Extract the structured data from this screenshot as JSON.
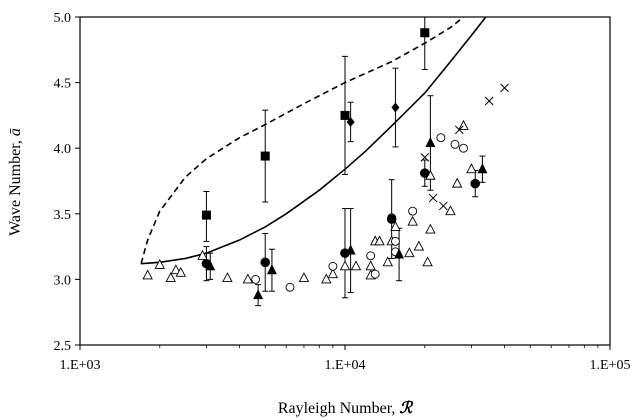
{
  "chart_data": {
    "type": "scatter",
    "x_scale": "log",
    "xlim": [
      1000,
      100000
    ],
    "ylim": [
      2.5,
      5.0
    ],
    "grid": false,
    "legend": "none",
    "xlabel": {
      "text": "Rayleigh Number, ",
      "symbol": "ℛ"
    },
    "ylabel": {
      "text": "Wave Number, ",
      "symbol": "ā"
    },
    "x_ticks": [
      {
        "value": 1000,
        "label": "1.E+03"
      },
      {
        "value": 10000,
        "label": "1.E+04"
      },
      {
        "value": 100000,
        "label": "1.E+05"
      }
    ],
    "y_ticks": [
      {
        "value": 2.5,
        "label": "2.5"
      },
      {
        "value": 3.0,
        "label": "3.0"
      },
      {
        "value": 3.5,
        "label": "3.5"
      },
      {
        "value": 4.0,
        "label": "4.0"
      },
      {
        "value": 4.5,
        "label": "4.5"
      },
      {
        "value": 5.0,
        "label": "5.0"
      }
    ],
    "curves": [
      {
        "style": "solid",
        "color": "#000000",
        "points": [
          [
            1700,
            3.12
          ],
          [
            2000,
            3.13
          ],
          [
            2500,
            3.16
          ],
          [
            3000,
            3.2
          ],
          [
            4000,
            3.3
          ],
          [
            5000,
            3.4
          ],
          [
            6000,
            3.5
          ],
          [
            8000,
            3.68
          ],
          [
            10000,
            3.84
          ],
          [
            12000,
            3.98
          ],
          [
            15000,
            4.17
          ],
          [
            20000,
            4.42
          ],
          [
            25000,
            4.66
          ],
          [
            30000,
            4.86
          ],
          [
            34000,
            5.0
          ]
        ]
      },
      {
        "style": "dashed",
        "color": "#000000",
        "points": [
          [
            1700,
            3.12
          ],
          [
            1800,
            3.3
          ],
          [
            2000,
            3.52
          ],
          [
            2500,
            3.78
          ],
          [
            3000,
            3.92
          ],
          [
            4000,
            4.08
          ],
          [
            5000,
            4.18
          ],
          [
            7000,
            4.34
          ],
          [
            10000,
            4.5
          ],
          [
            15000,
            4.66
          ],
          [
            20000,
            4.8
          ],
          [
            25000,
            4.92
          ],
          [
            28000,
            5.0
          ]
        ]
      }
    ],
    "series": [
      {
        "marker": "square-filled",
        "color": "#000000",
        "points": [
          {
            "x": 3000,
            "y": 3.49,
            "err": [
              0.2,
              0.18
            ]
          },
          {
            "x": 5000,
            "y": 3.94,
            "err": [
              0.35,
              0.35
            ]
          },
          {
            "x": 10000,
            "y": 4.25,
            "err": [
              0.45,
              0.45
            ]
          },
          {
            "x": 20000,
            "y": 4.88,
            "err": [
              0.28,
              0.12
            ]
          }
        ]
      },
      {
        "marker": "diamond-filled",
        "color": "#000000",
        "points": [
          {
            "x": 10500,
            "y": 4.2,
            "err": [
              0.15,
              0.15
            ]
          },
          {
            "x": 15500,
            "y": 4.31,
            "err": [
              0.3,
              0.3
            ]
          }
        ]
      },
      {
        "marker": "circle-filled",
        "color": "#000000",
        "points": [
          {
            "x": 3000,
            "y": 3.12,
            "err": [
              0.13,
              0.13
            ]
          },
          {
            "x": 5000,
            "y": 3.13,
            "err": [
              0.22,
              0.22
            ]
          },
          {
            "x": 10000,
            "y": 3.2,
            "err": [
              0.34,
              0.34
            ]
          },
          {
            "x": 15000,
            "y": 3.46,
            "err": [
              0.3,
              0.3
            ]
          },
          {
            "x": 20000,
            "y": 3.81,
            "err": [
              0.1,
              0.1
            ]
          },
          {
            "x": 31000,
            "y": 3.73,
            "err": [
              0.1,
              0.1
            ]
          }
        ]
      },
      {
        "marker": "triangle-filled",
        "color": "#000000",
        "points": [
          {
            "x": 3100,
            "y": 3.1,
            "err": [
              0.1,
              0.1
            ]
          },
          {
            "x": 4700,
            "y": 2.88,
            "err": [
              0.08,
              0.08
            ]
          },
          {
            "x": 5300,
            "y": 3.07,
            "err": [
              0.16,
              0.16
            ]
          },
          {
            "x": 10500,
            "y": 3.22,
            "err": [
              0.32,
              0.32
            ]
          },
          {
            "x": 16000,
            "y": 3.19,
            "err": [
              0.2,
              0.2
            ]
          },
          {
            "x": 21000,
            "y": 4.04,
            "err": [
              0.36,
              0.36
            ]
          },
          {
            "x": 33000,
            "y": 3.84,
            "err": [
              0.1,
              0.1
            ]
          }
        ]
      },
      {
        "marker": "triangle-open",
        "color": "#000000",
        "points": [
          [
            1800,
            3.03
          ],
          [
            2000,
            3.11
          ],
          [
            2200,
            3.01
          ],
          [
            2300,
            3.07
          ],
          [
            2400,
            3.05
          ],
          [
            2900,
            3.18
          ],
          [
            3600,
            3.01
          ],
          [
            4300,
            3.0
          ],
          [
            7000,
            3.01
          ],
          [
            8500,
            3.0
          ],
          [
            9000,
            3.04
          ],
          [
            10000,
            3.1
          ],
          [
            11000,
            3.1
          ],
          [
            12500,
            3.1
          ],
          [
            12500,
            3.03
          ],
          [
            13000,
            3.29
          ],
          [
            13500,
            3.29
          ],
          [
            14500,
            3.13
          ],
          [
            15000,
            3.29
          ],
          [
            15500,
            3.4
          ],
          [
            17500,
            3.2
          ],
          [
            18000,
            3.44
          ],
          [
            19000,
            3.25
          ],
          [
            20500,
            3.13
          ],
          [
            21000,
            3.38
          ],
          [
            21000,
            3.79
          ],
          [
            25000,
            3.52
          ],
          [
            26500,
            3.73
          ],
          [
            28000,
            4.17
          ],
          [
            30000,
            3.84
          ]
        ]
      },
      {
        "marker": "circle-open",
        "color": "#000000",
        "points": [
          [
            4600,
            3.0
          ],
          [
            6200,
            2.94
          ],
          [
            9000,
            3.1
          ],
          [
            12500,
            3.18
          ],
          [
            13000,
            3.04
          ],
          [
            15000,
            3.47
          ],
          [
            15500,
            3.29
          ],
          [
            15500,
            3.21
          ],
          [
            18000,
            3.52
          ],
          [
            23000,
            4.08
          ],
          [
            26000,
            4.03
          ],
          [
            28000,
            4.0
          ]
        ]
      },
      {
        "marker": "cross",
        "color": "#000000",
        "points": [
          [
            20000,
            3.93
          ],
          [
            21500,
            3.62
          ],
          [
            23500,
            3.56
          ],
          [
            27000,
            4.14
          ],
          [
            35000,
            4.36
          ],
          [
            40000,
            4.46
          ]
        ]
      }
    ]
  }
}
